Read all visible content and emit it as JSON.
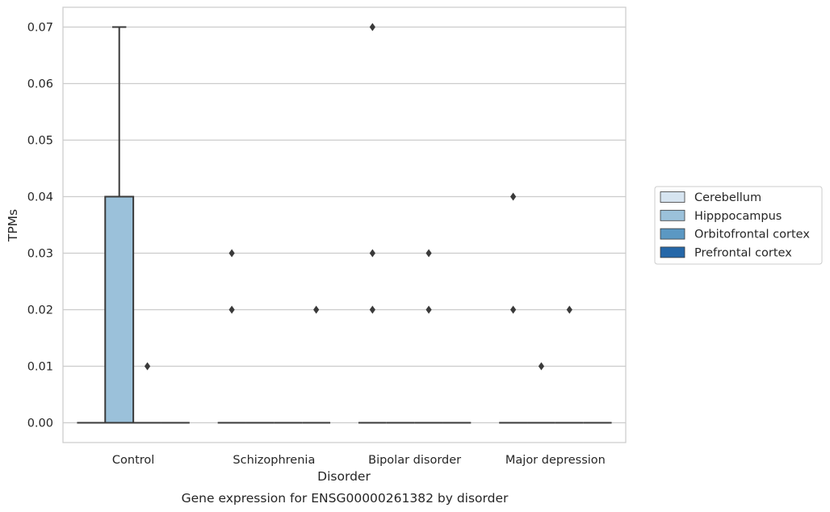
{
  "chart_data": {
    "type": "box",
    "xlabel": "Disorder",
    "ylabel": "TPMs",
    "caption": "Gene expression for ENSG00000261382 by disorder",
    "ylim": [
      -0.0035,
      0.0735
    ],
    "yticks": [
      "0.00",
      "0.01",
      "0.02",
      "0.03",
      "0.04",
      "0.05",
      "0.06",
      "0.07"
    ],
    "grid": "horizontal",
    "legend_position": "right",
    "categories": [
      "Control",
      "Schizophrenia",
      "Bipolar disorder",
      "Major depression"
    ],
    "series": [
      {
        "name": "Cerebellum",
        "color": "#d6e4f0"
      },
      {
        "name": "Hipppocampus",
        "color": "#9bc1da"
      },
      {
        "name": "Orbitofrontal cortex",
        "color": "#5b98c3"
      },
      {
        "name": "Prefrontal cortex",
        "color": "#2567a8"
      }
    ],
    "boxes": [
      {
        "category": "Control",
        "series": "Cerebellum",
        "q1": 0,
        "median": 0,
        "q3": 0,
        "whisker_low": 0,
        "whisker_high": 0,
        "outliers": []
      },
      {
        "category": "Control",
        "series": "Hipppocampus",
        "q1": 0,
        "median": 0,
        "q3": 0.04,
        "whisker_low": 0,
        "whisker_high": 0.07,
        "outliers": []
      },
      {
        "category": "Control",
        "series": "Orbitofrontal cortex",
        "q1": 0,
        "median": 0,
        "q3": 0,
        "whisker_low": 0,
        "whisker_high": 0,
        "outliers": [
          0.01
        ]
      },
      {
        "category": "Control",
        "series": "Prefrontal cortex",
        "q1": 0,
        "median": 0,
        "q3": 0,
        "whisker_low": 0,
        "whisker_high": 0,
        "outliers": []
      },
      {
        "category": "Schizophrenia",
        "series": "Cerebellum",
        "q1": 0,
        "median": 0,
        "q3": 0,
        "whisker_low": 0,
        "whisker_high": 0,
        "outliers": [
          0.02,
          0.03
        ]
      },
      {
        "category": "Schizophrenia",
        "series": "Hipppocampus",
        "q1": 0,
        "median": 0,
        "q3": 0,
        "whisker_low": 0,
        "whisker_high": 0,
        "outliers": []
      },
      {
        "category": "Schizophrenia",
        "series": "Orbitofrontal cortex",
        "q1": 0,
        "median": 0,
        "q3": 0,
        "whisker_low": 0,
        "whisker_high": 0,
        "outliers": []
      },
      {
        "category": "Schizophrenia",
        "series": "Prefrontal cortex",
        "q1": 0,
        "median": 0,
        "q3": 0,
        "whisker_low": 0,
        "whisker_high": 0,
        "outliers": [
          0.02
        ]
      },
      {
        "category": "Bipolar disorder",
        "series": "Cerebellum",
        "q1": 0,
        "median": 0,
        "q3": 0,
        "whisker_low": 0,
        "whisker_high": 0,
        "outliers": [
          0.02,
          0.03,
          0.07
        ]
      },
      {
        "category": "Bipolar disorder",
        "series": "Hipppocampus",
        "q1": 0,
        "median": 0,
        "q3": 0,
        "whisker_low": 0,
        "whisker_high": 0,
        "outliers": []
      },
      {
        "category": "Bipolar disorder",
        "series": "Orbitofrontal cortex",
        "q1": 0,
        "median": 0,
        "q3": 0,
        "whisker_low": 0,
        "whisker_high": 0,
        "outliers": [
          0.02,
          0.03
        ]
      },
      {
        "category": "Bipolar disorder",
        "series": "Prefrontal cortex",
        "q1": 0,
        "median": 0,
        "q3": 0,
        "whisker_low": 0,
        "whisker_high": 0,
        "outliers": []
      },
      {
        "category": "Major depression",
        "series": "Cerebellum",
        "q1": 0,
        "median": 0,
        "q3": 0,
        "whisker_low": 0,
        "whisker_high": 0,
        "outliers": [
          0.02,
          0.04
        ]
      },
      {
        "category": "Major depression",
        "series": "Hipppocampus",
        "q1": 0,
        "median": 0,
        "q3": 0,
        "whisker_low": 0,
        "whisker_high": 0,
        "outliers": [
          0.01
        ]
      },
      {
        "category": "Major depression",
        "series": "Orbitofrontal cortex",
        "q1": 0,
        "median": 0,
        "q3": 0,
        "whisker_low": 0,
        "whisker_high": 0,
        "outliers": [
          0.02
        ]
      },
      {
        "category": "Major depression",
        "series": "Prefrontal cortex",
        "q1": 0,
        "median": 0,
        "q3": 0,
        "whisker_low": 0,
        "whisker_high": 0,
        "outliers": []
      }
    ],
    "colors": {
      "grid": "#cccccc",
      "frame": "#cccccc",
      "box_edge": "#3a3a3a",
      "marker": "#3a3a3a"
    }
  }
}
